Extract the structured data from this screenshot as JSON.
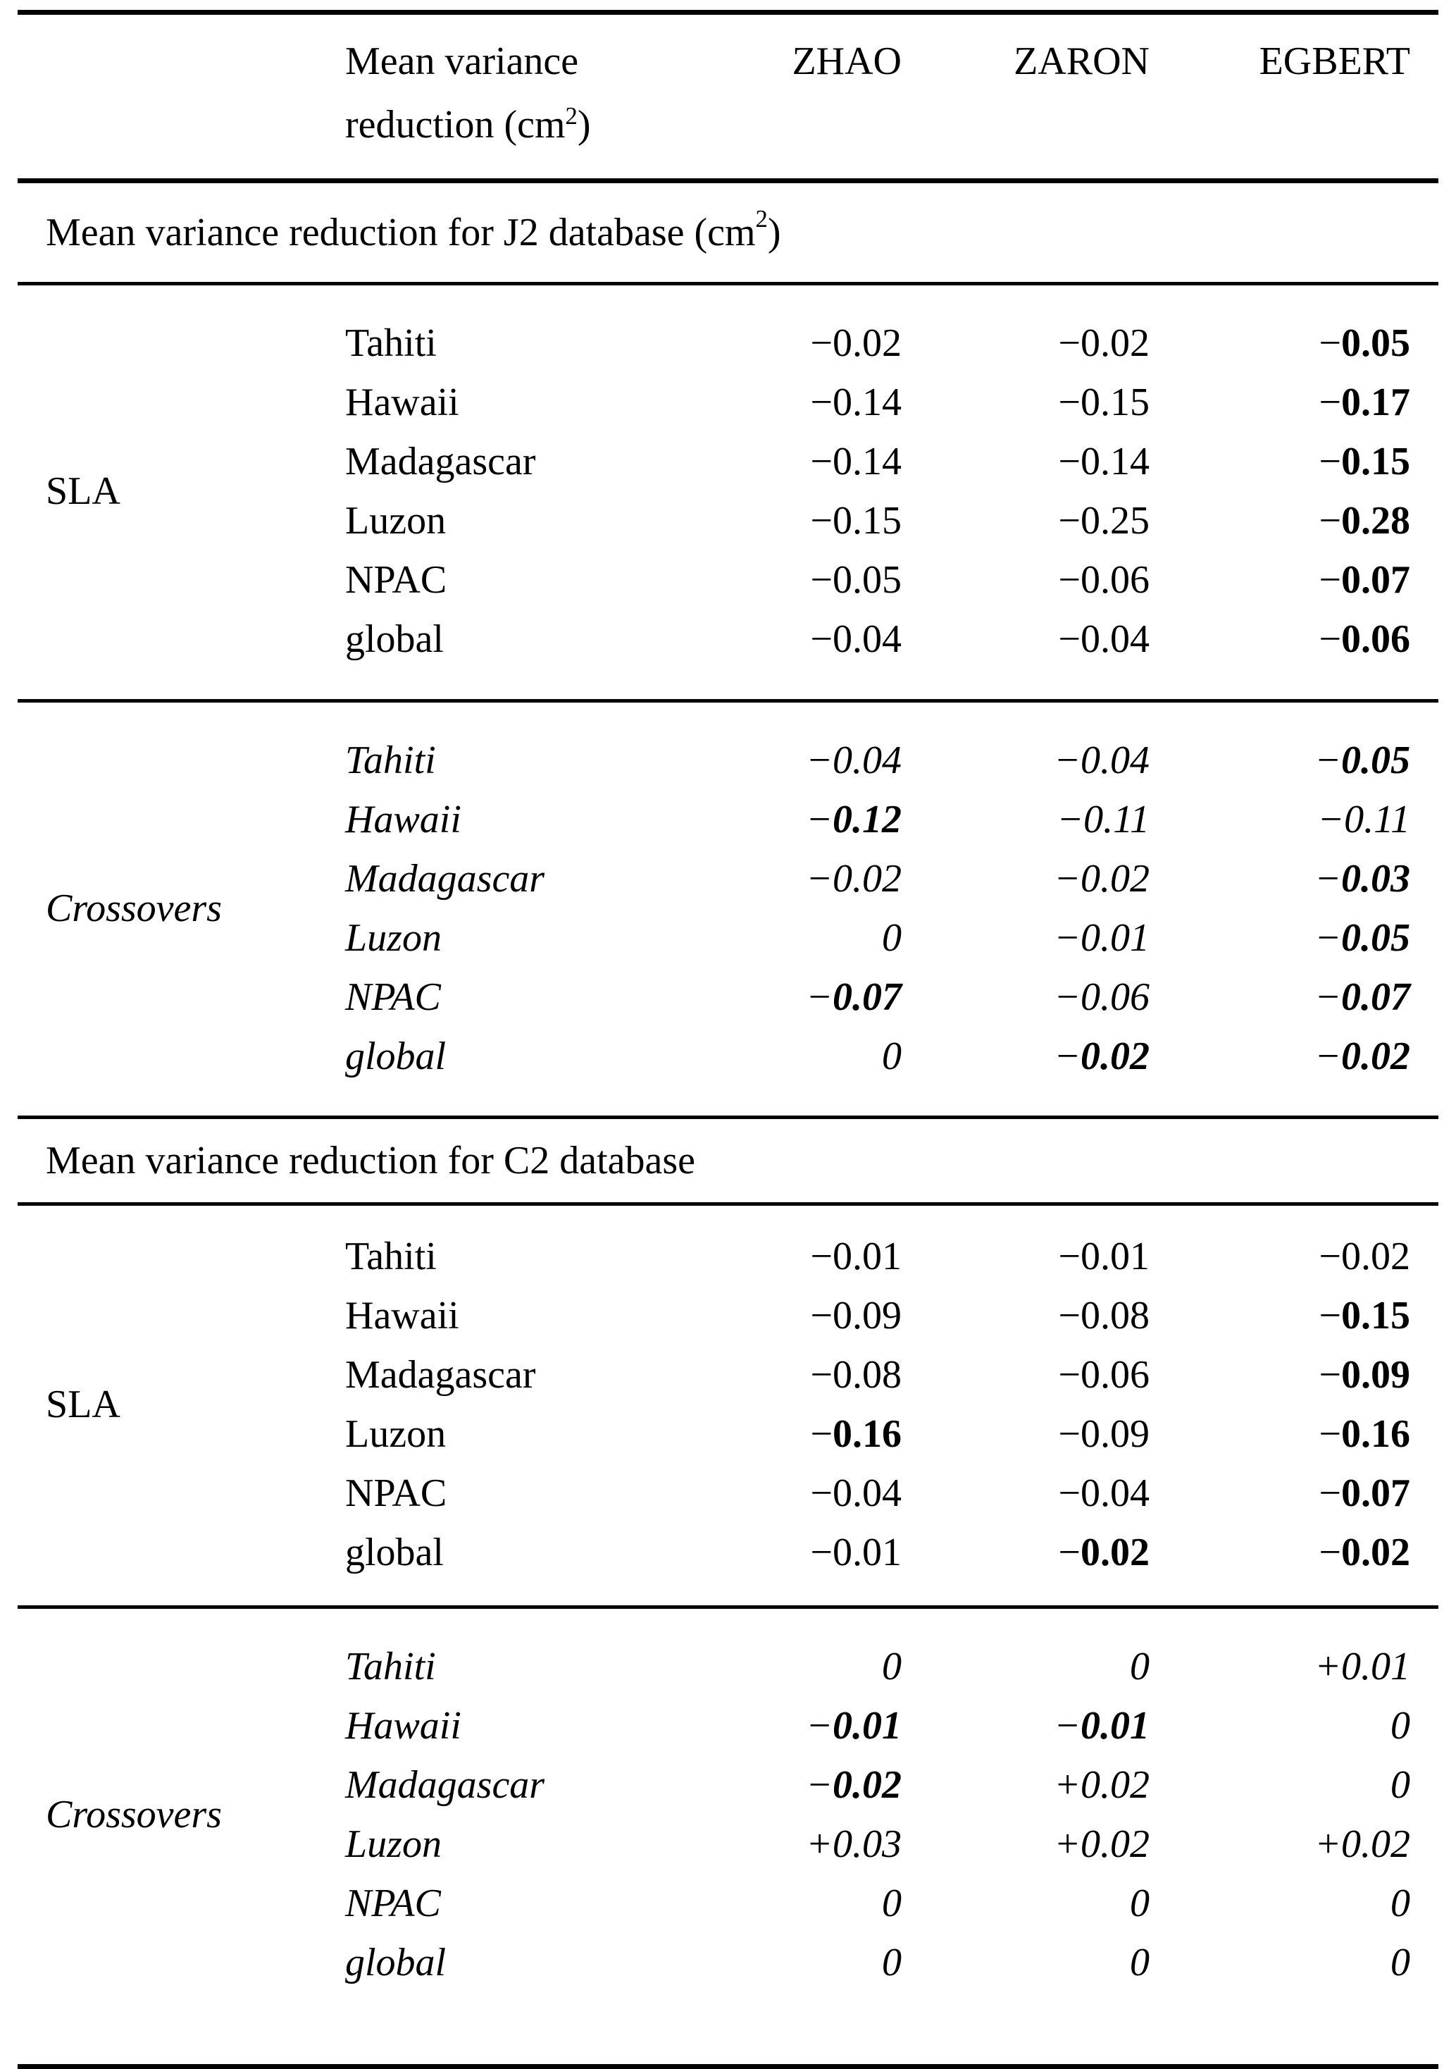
{
  "header": {
    "col2_line1": "Mean variance",
    "col2_line2": {
      "pre": "reduction (cm",
      "sup": "2",
      "post": ")"
    },
    "models": [
      "ZHAO",
      "ZARON",
      "EGBERT"
    ]
  },
  "sections": [
    {
      "title": {
        "pre": "Mean variance reduction for J2 database (cm",
        "sup": "2",
        "post": ")"
      },
      "groups": [
        {
          "label": "SLA",
          "italic": false,
          "rows": [
            {
              "region": "Tahiti",
              "values": [
                {
                  "v": "−0.02",
                  "b": false
                },
                {
                  "v": "−0.02",
                  "b": false
                },
                {
                  "v": "−0.05",
                  "b": true
                }
              ]
            },
            {
              "region": "Hawaii",
              "values": [
                {
                  "v": "−0.14",
                  "b": false
                },
                {
                  "v": "−0.15",
                  "b": false
                },
                {
                  "v": "−0.17",
                  "b": true
                }
              ]
            },
            {
              "region": "Madagascar",
              "values": [
                {
                  "v": "−0.14",
                  "b": false
                },
                {
                  "v": "−0.14",
                  "b": false
                },
                {
                  "v": "−0.15",
                  "b": true
                }
              ]
            },
            {
              "region": "Luzon",
              "values": [
                {
                  "v": "−0.15",
                  "b": false
                },
                {
                  "v": "−0.25",
                  "b": false
                },
                {
                  "v": "−0.28",
                  "b": true
                }
              ]
            },
            {
              "region": "NPAC",
              "values": [
                {
                  "v": "−0.05",
                  "b": false
                },
                {
                  "v": "−0.06",
                  "b": false
                },
                {
                  "v": "−0.07",
                  "b": true
                }
              ]
            },
            {
              "region": "global",
              "values": [
                {
                  "v": "−0.04",
                  "b": false
                },
                {
                  "v": "−0.04",
                  "b": false
                },
                {
                  "v": "−0.06",
                  "b": true
                }
              ]
            }
          ]
        },
        {
          "label": "Crossovers",
          "italic": true,
          "rows": [
            {
              "region": "Tahiti",
              "values": [
                {
                  "v": "−0.04",
                  "b": false
                },
                {
                  "v": "−0.04",
                  "b": false
                },
                {
                  "v": "−0.05",
                  "b": true
                }
              ]
            },
            {
              "region": "Hawaii",
              "values": [
                {
                  "v": "−0.12",
                  "b": true
                },
                {
                  "v": "−0.11",
                  "b": false
                },
                {
                  "v": "−0.11",
                  "b": false
                }
              ]
            },
            {
              "region": "Madagascar",
              "values": [
                {
                  "v": "−0.02",
                  "b": false
                },
                {
                  "v": "−0.02",
                  "b": false
                },
                {
                  "v": "−0.03",
                  "b": true
                }
              ]
            },
            {
              "region": "Luzon",
              "values": [
                {
                  "v": "0",
                  "b": false
                },
                {
                  "v": "−0.01",
                  "b": false
                },
                {
                  "v": "−0.05",
                  "b": true
                }
              ]
            },
            {
              "region": "NPAC",
              "values": [
                {
                  "v": "−0.07",
                  "b": true
                },
                {
                  "v": "−0.06",
                  "b": false
                },
                {
                  "v": "−0.07",
                  "b": true
                }
              ]
            },
            {
              "region": "global",
              "values": [
                {
                  "v": "0",
                  "b": false
                },
                {
                  "v": "−0.02",
                  "b": true
                },
                {
                  "v": "−0.02",
                  "b": true
                }
              ]
            }
          ]
        }
      ]
    },
    {
      "title": {
        "pre": "Mean variance reduction for C2 database",
        "sup": "",
        "post": ""
      },
      "groups": [
        {
          "label": "SLA",
          "italic": false,
          "rows": [
            {
              "region": "Tahiti",
              "values": [
                {
                  "v": "−0.01",
                  "b": false
                },
                {
                  "v": "−0.01",
                  "b": false
                },
                {
                  "v": "−0.02",
                  "b": false
                }
              ]
            },
            {
              "region": "Hawaii",
              "values": [
                {
                  "v": "−0.09",
                  "b": false
                },
                {
                  "v": "−0.08",
                  "b": false
                },
                {
                  "v": "−0.15",
                  "b": true
                }
              ]
            },
            {
              "region": "Madagascar",
              "values": [
                {
                  "v": "−0.08",
                  "b": false
                },
                {
                  "v": "−0.06",
                  "b": false
                },
                {
                  "v": "−0.09",
                  "b": true
                }
              ]
            },
            {
              "region": "Luzon",
              "values": [
                {
                  "v": "−0.16",
                  "b": true
                },
                {
                  "v": "−0.09",
                  "b": false
                },
                {
                  "v": "−0.16",
                  "b": true
                }
              ]
            },
            {
              "region": "NPAC",
              "values": [
                {
                  "v": "−0.04",
                  "b": false
                },
                {
                  "v": "−0.04",
                  "b": false
                },
                {
                  "v": "−0.07",
                  "b": true
                }
              ]
            },
            {
              "region": "global",
              "values": [
                {
                  "v": "−0.01",
                  "b": false
                },
                {
                  "v": "−0.02",
                  "b": true
                },
                {
                  "v": "−0.02",
                  "b": true
                }
              ]
            }
          ]
        },
        {
          "label": "Crossovers",
          "italic": true,
          "rows": [
            {
              "region": "Tahiti",
              "values": [
                {
                  "v": "0",
                  "b": false
                },
                {
                  "v": "0",
                  "b": false
                },
                {
                  "v": "+0.01",
                  "b": false
                }
              ]
            },
            {
              "region": "Hawaii",
              "values": [
                {
                  "v": "−0.01",
                  "b": true
                },
                {
                  "v": "−0.01",
                  "b": true
                },
                {
                  "v": "0",
                  "b": false
                }
              ]
            },
            {
              "region": "Madagascar",
              "values": [
                {
                  "v": "−0.02",
                  "b": true
                },
                {
                  "v": "+0.02",
                  "b": false
                },
                {
                  "v": "0",
                  "b": false
                }
              ]
            },
            {
              "region": "Luzon",
              "values": [
                {
                  "v": "+0.03",
                  "b": false
                },
                {
                  "v": "+0.02",
                  "b": false
                },
                {
                  "v": "+0.02",
                  "b": false
                }
              ]
            },
            {
              "region": "NPAC",
              "values": [
                {
                  "v": "0",
                  "b": false
                },
                {
                  "v": "0",
                  "b": false
                },
                {
                  "v": "0",
                  "b": false
                }
              ]
            },
            {
              "region": "global",
              "values": [
                {
                  "v": "0",
                  "b": false
                },
                {
                  "v": "0",
                  "b": false
                },
                {
                  "v": "0",
                  "b": false
                }
              ]
            }
          ]
        }
      ]
    }
  ]
}
